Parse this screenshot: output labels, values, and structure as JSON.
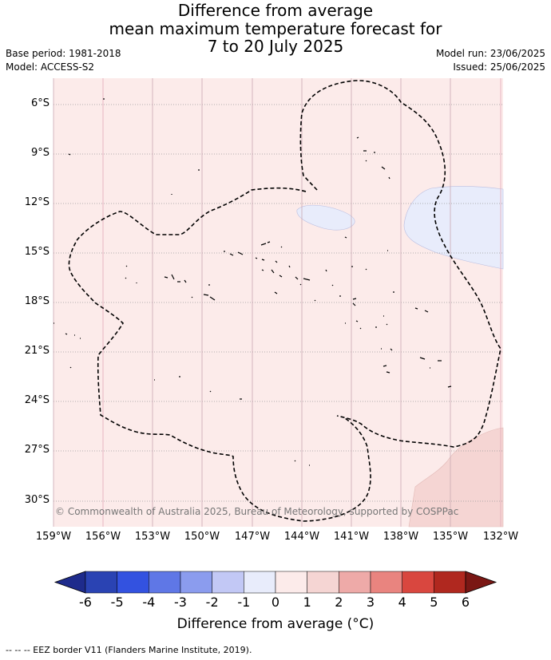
{
  "title_lines": [
    "Difference from average",
    "mean maximum temperature forecast for",
    "7 to 20 July 2025"
  ],
  "meta_left": [
    "Base period: 1981-2018",
    "Model: ACCESS-S2"
  ],
  "meta_right": [
    "Model run: 23/06/2025",
    "Issued: 25/06/2025"
  ],
  "map": {
    "lon_ticks": [
      "159°W",
      "156°W",
      "153°W",
      "150°W",
      "147°W",
      "144°W",
      "141°W",
      "138°W",
      "135°W",
      "132°W"
    ],
    "lat_ticks": [
      "6°S",
      "9°S",
      "12°S",
      "15°S",
      "18°S",
      "21°S",
      "24°S",
      "27°S",
      "30°S"
    ],
    "background_category": "0 to 1",
    "copyright": "© Commonwealth of Australia 2025, Bureau of Meteorology, supported by COSPPac"
  },
  "colorbar": {
    "ticks": [
      "-6",
      "-5",
      "-4",
      "-3",
      "-2",
      "-1",
      "0",
      "1",
      "2",
      "3",
      "4",
      "5",
      "6"
    ],
    "colors": [
      "#1e2b8c",
      "#2a43b3",
      "#3352e0",
      "#5f77e6",
      "#8b9cee",
      "#c2c8f5",
      "#e8ecfb",
      "#fcebea",
      "#f5d5d3",
      "#eeaaa8",
      "#e9847f",
      "#d9473f",
      "#b0281f",
      "#7a1714"
    ],
    "title": "Difference from average (°C)"
  },
  "source_note": "-- -- -- EEZ border V11 (Flanders Marine Institute, 2019)."
}
